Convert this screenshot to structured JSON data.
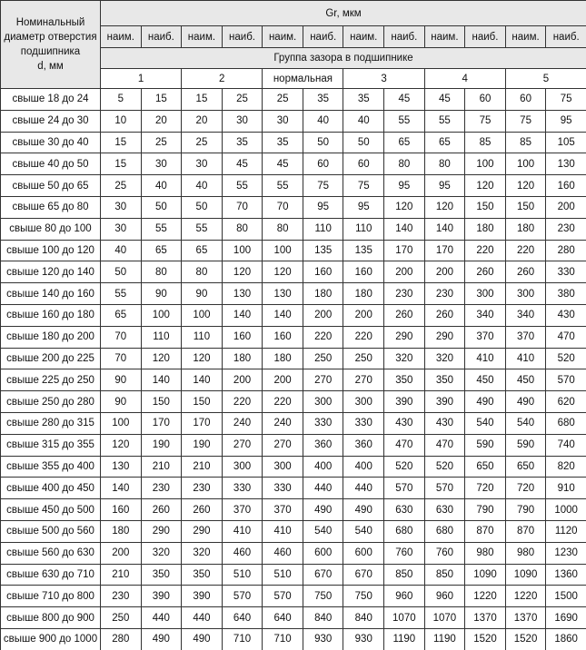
{
  "table": {
    "corner": [
      "Номинальный",
      "диаметр отверстия",
      "подшипника",
      "d, мм"
    ],
    "title": "Gr, мкм",
    "subheaders": [
      "наим.",
      "наиб.",
      "наим.",
      "наиб.",
      "наим.",
      "наиб.",
      "наим.",
      "наиб.",
      "наим.",
      "наиб.",
      "наим.",
      "наиб."
    ],
    "group_title": "Группа зазора в подшипнике",
    "groups": [
      "1",
      "2",
      "нормальная",
      "3",
      "4",
      "5"
    ],
    "rows": [
      [
        "свыше 18 до 24",
        5,
        15,
        15,
        25,
        25,
        35,
        35,
        45,
        45,
        60,
        60,
        75
      ],
      [
        "свыше 24 до 30",
        10,
        20,
        20,
        30,
        30,
        40,
        40,
        55,
        55,
        75,
        75,
        95
      ],
      [
        "свыше 30 до 40",
        15,
        25,
        25,
        35,
        35,
        50,
        50,
        65,
        65,
        85,
        85,
        105
      ],
      [
        "свыше 40 до 50",
        15,
        30,
        30,
        45,
        45,
        60,
        60,
        80,
        80,
        100,
        100,
        130
      ],
      [
        "свыше 50 до 65",
        25,
        40,
        40,
        55,
        55,
        75,
        75,
        95,
        95,
        120,
        120,
        160
      ],
      [
        "свыше 65 до 80",
        30,
        50,
        50,
        70,
        70,
        95,
        95,
        120,
        120,
        150,
        150,
        200
      ],
      [
        "свыше 80 до 100",
        30,
        55,
        55,
        80,
        80,
        110,
        110,
        140,
        140,
        180,
        180,
        230
      ],
      [
        "свыше 100 до 120",
        40,
        65,
        65,
        100,
        100,
        135,
        135,
        170,
        170,
        220,
        220,
        280
      ],
      [
        "свыше 120 до 140",
        50,
        80,
        80,
        120,
        120,
        160,
        160,
        200,
        200,
        260,
        260,
        330
      ],
      [
        "свыше 140 до 160",
        55,
        90,
        90,
        130,
        130,
        180,
        180,
        230,
        230,
        300,
        300,
        380
      ],
      [
        "свыше 160 до 180",
        65,
        100,
        100,
        140,
        140,
        200,
        200,
        260,
        260,
        340,
        340,
        430
      ],
      [
        "свыше 180 до 200",
        70,
        110,
        110,
        160,
        160,
        220,
        220,
        290,
        290,
        370,
        370,
        470
      ],
      [
        "свыше 200 до 225",
        70,
        120,
        120,
        180,
        180,
        250,
        250,
        320,
        320,
        410,
        410,
        520
      ],
      [
        "свыше 225 до 250",
        90,
        140,
        140,
        200,
        200,
        270,
        270,
        350,
        350,
        450,
        450,
        570
      ],
      [
        "свыше 250 до 280",
        90,
        150,
        150,
        220,
        220,
        300,
        300,
        390,
        390,
        490,
        490,
        620
      ],
      [
        "свыше 280 до 315",
        100,
        170,
        170,
        240,
        240,
        330,
        330,
        430,
        430,
        540,
        540,
        680
      ],
      [
        "свыше 315 до 355",
        120,
        190,
        190,
        270,
        270,
        360,
        360,
        470,
        470,
        590,
        590,
        740
      ],
      [
        "свыше 355 до 400",
        130,
        210,
        210,
        300,
        300,
        400,
        400,
        520,
        520,
        650,
        650,
        820
      ],
      [
        "свыше 400 до 450",
        140,
        230,
        230,
        330,
        330,
        440,
        440,
        570,
        570,
        720,
        720,
        910
      ],
      [
        "свыше 450 до 500",
        160,
        260,
        260,
        370,
        370,
        490,
        490,
        630,
        630,
        790,
        790,
        1000
      ],
      [
        "свыше 500 до 560",
        180,
        290,
        290,
        410,
        410,
        540,
        540,
        680,
        680,
        870,
        870,
        1120
      ],
      [
        "свыше 560 до 630",
        200,
        320,
        320,
        460,
        460,
        600,
        600,
        760,
        760,
        980,
        980,
        1230
      ],
      [
        "свыше 630 до 710",
        210,
        350,
        350,
        510,
        510,
        670,
        670,
        850,
        850,
        1090,
        1090,
        1360
      ],
      [
        "свыше 710 до 800",
        230,
        390,
        390,
        570,
        570,
        750,
        750,
        960,
        960,
        1220,
        1220,
        1500
      ],
      [
        "свыше 800 до 900",
        250,
        440,
        440,
        640,
        640,
        840,
        840,
        1070,
        1070,
        1370,
        1370,
        1690
      ],
      [
        "свыше 900 до 1000",
        280,
        490,
        490,
        710,
        710,
        930,
        930,
        1190,
        1190,
        1520,
        1520,
        1860
      ]
    ]
  }
}
